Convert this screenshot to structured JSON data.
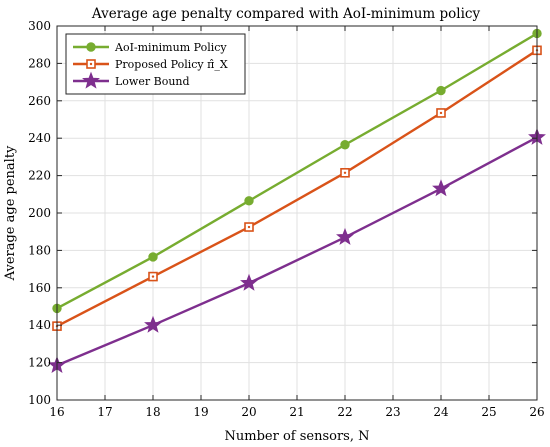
{
  "chart_data": {
    "type": "line",
    "title": "Average age penalty compared with AoI-minimum policy",
    "xlabel": "Number of sensors, N",
    "ylabel": "Average age penalty",
    "xlim": [
      16,
      26
    ],
    "ylim": [
      100,
      300
    ],
    "xticks": [
      16,
      17,
      18,
      19,
      20,
      21,
      22,
      23,
      24,
      25,
      26
    ],
    "yticks": [
      100,
      120,
      140,
      160,
      180,
      200,
      220,
      240,
      260,
      280,
      300
    ],
    "grid": true,
    "legend_position": "top-left",
    "x": [
      16,
      18,
      20,
      22,
      24,
      26
    ],
    "series": [
      {
        "name": "AoI-minimum Policy",
        "color": "#77AC30",
        "marker": "circle",
        "values": [
          149,
          176.5,
          206.5,
          236.5,
          265.5,
          296
        ]
      },
      {
        "name": "Proposed Policy π̂_X",
        "color": "#D95319",
        "marker": "square",
        "values": [
          139.5,
          166,
          192.5,
          221.5,
          253.5,
          287
        ]
      },
      {
        "name": "Lower Bound",
        "color": "#7E2F8E",
        "marker": "star",
        "values": [
          118.5,
          140,
          162.5,
          187,
          213,
          240.5
        ]
      }
    ]
  }
}
